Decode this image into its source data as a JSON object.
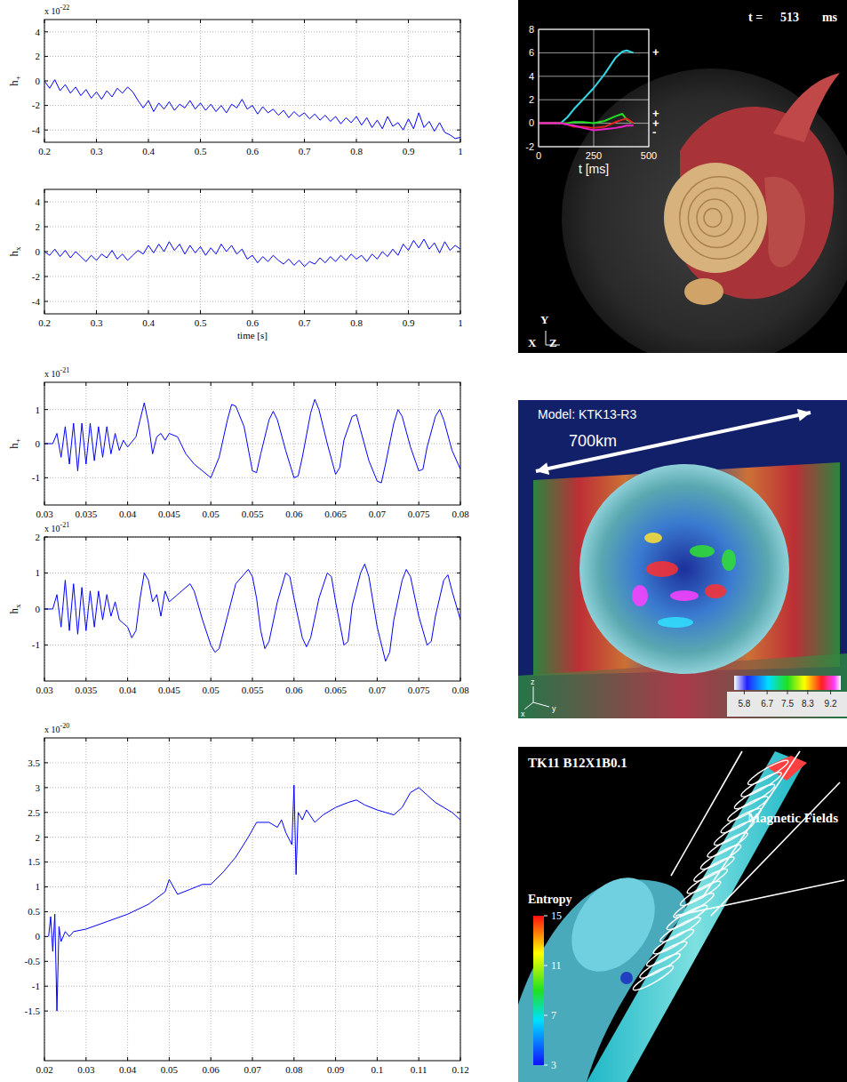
{
  "chart_data": [
    {
      "type": "line",
      "y_label": {
        "base": "h",
        "sub": "+"
      },
      "y_exponent": {
        "base": "x 10",
        "exp": "-22"
      },
      "x": [
        0.2,
        0.21,
        0.22,
        0.23,
        0.24,
        0.25,
        0.26,
        0.27,
        0.28,
        0.29,
        0.3,
        0.31,
        0.32,
        0.33,
        0.34,
        0.35,
        0.36,
        0.37,
        0.38,
        0.39,
        0.4,
        0.41,
        0.42,
        0.43,
        0.44,
        0.45,
        0.46,
        0.47,
        0.48,
        0.49,
        0.5,
        0.51,
        0.52,
        0.53,
        0.54,
        0.55,
        0.56,
        0.57,
        0.58,
        0.59,
        0.6,
        0.61,
        0.62,
        0.63,
        0.64,
        0.65,
        0.66,
        0.67,
        0.68,
        0.69,
        0.7,
        0.71,
        0.72,
        0.73,
        0.74,
        0.75,
        0.76,
        0.77,
        0.78,
        0.79,
        0.8,
        0.81,
        0.82,
        0.83,
        0.84,
        0.85,
        0.86,
        0.87,
        0.88,
        0.89,
        0.9,
        0.91,
        0.92,
        0.93,
        0.94,
        0.95,
        0.96,
        0.97,
        0.98,
        0.99,
        1
      ],
      "series": [
        {
          "color": "#0000ff",
          "values": [
            0,
            -0.6,
            0.1,
            -0.8,
            -0.3,
            -1.0,
            -0.5,
            -1.2,
            -0.7,
            -1.4,
            -0.9,
            -1.5,
            -0.8,
            -1.3,
            -0.6,
            -1.0,
            -0.5,
            -0.9,
            -1.6,
            -2.2,
            -1.6,
            -2.5,
            -1.8,
            -2.3,
            -1.7,
            -2.4,
            -1.9,
            -2.2,
            -1.6,
            -2.3,
            -1.8,
            -2.4,
            -1.9,
            -2.5,
            -2.0,
            -2.6,
            -1.9,
            -2.2,
            -1.5,
            -2.3,
            -2.0,
            -2.7,
            -2.1,
            -2.6,
            -2.3,
            -2.8,
            -2.4,
            -3.0,
            -2.5,
            -2.9,
            -2.6,
            -3.1,
            -2.7,
            -3.2,
            -2.8,
            -3.3,
            -2.9,
            -3.5,
            -3.0,
            -3.4,
            -2.9,
            -3.6,
            -3.0,
            -3.8,
            -3.2,
            -3.9,
            -2.9,
            -3.7,
            -3.4,
            -4.0,
            -3.1,
            -3.9,
            -2.6,
            -3.8,
            -3.3,
            -4.1,
            -3.4,
            -4.2,
            -4.4,
            -4.7,
            -4.6
          ]
        }
      ],
      "xlim": [
        0.2,
        1
      ],
      "xticks": [
        0.2,
        0.3,
        0.4,
        0.5,
        0.6,
        0.7,
        0.8,
        0.9,
        1
      ],
      "ylim": [
        -5,
        5
      ],
      "yticks": [
        -4,
        -2,
        0,
        2,
        4
      ],
      "grid": true
    },
    {
      "type": "line",
      "y_label": {
        "base": "h",
        "sub": "x"
      },
      "x_label": "time [s]",
      "x": [
        0.2,
        0.21,
        0.22,
        0.23,
        0.24,
        0.25,
        0.26,
        0.27,
        0.28,
        0.29,
        0.3,
        0.31,
        0.32,
        0.33,
        0.34,
        0.35,
        0.36,
        0.37,
        0.38,
        0.39,
        0.4,
        0.41,
        0.42,
        0.43,
        0.44,
        0.45,
        0.46,
        0.47,
        0.48,
        0.49,
        0.5,
        0.51,
        0.52,
        0.53,
        0.54,
        0.55,
        0.56,
        0.57,
        0.58,
        0.59,
        0.6,
        0.61,
        0.62,
        0.63,
        0.64,
        0.65,
        0.66,
        0.67,
        0.68,
        0.69,
        0.7,
        0.71,
        0.72,
        0.73,
        0.74,
        0.75,
        0.76,
        0.77,
        0.78,
        0.79,
        0.8,
        0.81,
        0.82,
        0.83,
        0.84,
        0.85,
        0.86,
        0.87,
        0.88,
        0.89,
        0.9,
        0.91,
        0.92,
        0.93,
        0.94,
        0.95,
        0.96,
        0.97,
        0.98,
        0.99,
        1
      ],
      "series": [
        {
          "color": "#0000ff",
          "values": [
            0,
            -0.3,
            0.2,
            -0.4,
            0.1,
            -0.5,
            0.0,
            -0.4,
            -0.8,
            -0.3,
            -0.7,
            -0.2,
            -0.5,
            0.1,
            -0.6,
            -0.2,
            -0.7,
            -0.3,
            0.1,
            -0.2,
            0.5,
            -0.1,
            0.6,
            0.0,
            0.8,
            0.1,
            0.6,
            -0.2,
            0.5,
            -0.1,
            0.4,
            -0.3,
            0.3,
            -0.2,
            0.6,
            0.0,
            0.5,
            -0.2,
            0.2,
            -0.6,
            -0.3,
            -0.9,
            -0.4,
            -0.8,
            -0.3,
            -0.7,
            -1.0,
            -0.6,
            -1.1,
            -0.7,
            -1.2,
            -0.8,
            -1.0,
            -0.5,
            -0.9,
            -0.4,
            -0.8,
            -0.3,
            -0.7,
            -0.2,
            -0.6,
            -0.3,
            -0.8,
            -0.2,
            -0.6,
            0.0,
            -0.4,
            0.2,
            -0.3,
            0.6,
            0.1,
            0.9,
            0.3,
            1.0,
            0.2,
            0.7,
            -0.1,
            0.8,
            0.1,
            0.5,
            0.2
          ]
        }
      ],
      "xlim": [
        0.2,
        1
      ],
      "xticks": [
        0.2,
        0.3,
        0.4,
        0.5,
        0.6,
        0.7,
        0.8,
        0.9,
        1
      ],
      "ylim": [
        -5,
        5
      ],
      "yticks": [
        -4,
        -2,
        0,
        2,
        4
      ],
      "grid": true
    },
    {
      "type": "line",
      "y_label": {
        "base": "h",
        "sub": "+"
      },
      "y_exponent": {
        "base": "x 10",
        "exp": "-21"
      },
      "x": [
        0.03,
        0.031,
        0.0315,
        0.032,
        0.0325,
        0.033,
        0.0335,
        0.034,
        0.0345,
        0.035,
        0.0355,
        0.036,
        0.0365,
        0.037,
        0.0375,
        0.038,
        0.0385,
        0.039,
        0.0395,
        0.04,
        0.041,
        0.0415,
        0.042,
        0.0425,
        0.043,
        0.0435,
        0.044,
        0.0445,
        0.045,
        0.046,
        0.047,
        0.048,
        0.049,
        0.05,
        0.051,
        0.052,
        0.0525,
        0.053,
        0.054,
        0.055,
        0.0555,
        0.056,
        0.057,
        0.0575,
        0.058,
        0.059,
        0.06,
        0.0605,
        0.061,
        0.062,
        0.0625,
        0.063,
        0.064,
        0.065,
        0.0655,
        0.066,
        0.067,
        0.0675,
        0.068,
        0.069,
        0.07,
        0.0705,
        0.071,
        0.072,
        0.0725,
        0.073,
        0.074,
        0.075,
        0.0755,
        0.076,
        0.077,
        0.0775,
        0.078,
        0.079,
        0.08
      ],
      "series": [
        {
          "color": "#0000ff",
          "values": [
            0,
            0,
            0.3,
            -0.4,
            0.5,
            -0.6,
            0.6,
            -0.8,
            0.6,
            -0.6,
            0.6,
            -0.5,
            0.5,
            -0.4,
            0.5,
            -0.3,
            0.3,
            -0.2,
            0.1,
            -0.1,
            0.2,
            0.7,
            1.2,
            0.6,
            -0.3,
            0.2,
            0.3,
            0.1,
            0.3,
            0.2,
            -0.3,
            -0.6,
            -0.8,
            -1,
            -0.4,
            0.7,
            1.15,
            1.1,
            0.5,
            -0.8,
            -0.85,
            -0.3,
            0.7,
            0.95,
            0.7,
            -0.2,
            -1,
            -0.95,
            -0.4,
            0.9,
            1.3,
            1,
            0,
            -0.9,
            -0.7,
            0.1,
            0.8,
            0.85,
            0.4,
            -0.5,
            -1.1,
            -1.15,
            -0.6,
            0.6,
            1,
            0.8,
            -0.1,
            -0.8,
            -0.75,
            -0.1,
            0.8,
            1,
            0.7,
            -0.2,
            -0.75
          ]
        }
      ],
      "xlim": [
        0.03,
        0.08
      ],
      "xticks": [
        0.03,
        0.035,
        0.04,
        0.045,
        0.05,
        0.055,
        0.06,
        0.065,
        0.07,
        0.075,
        0.08
      ],
      "ylim": [
        -1.8,
        1.8
      ],
      "yticks": [
        -1,
        0,
        1
      ],
      "grid": true
    },
    {
      "type": "line",
      "y_label": {
        "base": "h",
        "sub": "x"
      },
      "y_exponent": {
        "base": "x 10",
        "exp": "-21"
      },
      "x": [
        0.03,
        0.031,
        0.0315,
        0.032,
        0.0325,
        0.033,
        0.0335,
        0.034,
        0.0345,
        0.035,
        0.0355,
        0.036,
        0.0365,
        0.037,
        0.0375,
        0.038,
        0.0385,
        0.039,
        0.0395,
        0.04,
        0.0405,
        0.041,
        0.0415,
        0.042,
        0.0425,
        0.043,
        0.0435,
        0.044,
        0.0445,
        0.045,
        0.046,
        0.0475,
        0.048,
        0.049,
        0.05,
        0.0505,
        0.051,
        0.052,
        0.053,
        0.0545,
        0.055,
        0.0555,
        0.056,
        0.0565,
        0.057,
        0.058,
        0.059,
        0.0595,
        0.06,
        0.061,
        0.0615,
        0.062,
        0.063,
        0.064,
        0.0645,
        0.065,
        0.066,
        0.0665,
        0.067,
        0.068,
        0.0685,
        0.069,
        0.07,
        0.071,
        0.0715,
        0.072,
        0.073,
        0.0735,
        0.074,
        0.075,
        0.076,
        0.0765,
        0.077,
        0.078,
        0.0785,
        0.079,
        0.08
      ],
      "series": [
        {
          "color": "#0000ff",
          "values": [
            0,
            0,
            0.4,
            -0.5,
            0.8,
            -0.6,
            0.7,
            -0.7,
            0.6,
            -0.6,
            0.5,
            -0.5,
            0.5,
            -0.3,
            0.4,
            -0.2,
            0.2,
            -0.3,
            -0.4,
            -0.5,
            -0.8,
            -0.6,
            0.3,
            1,
            0.8,
            0.2,
            0.4,
            -0.2,
            0.5,
            0.2,
            0.4,
            0.7,
            0.5,
            -0.3,
            -1,
            -1.2,
            -1.1,
            -0.2,
            0.7,
            1.1,
            0.9,
            0.3,
            -0.6,
            -1.1,
            -0.9,
            0.2,
            1,
            0.9,
            0.3,
            -0.8,
            -1.05,
            -0.8,
            0.3,
            1,
            0.9,
            0.2,
            -1,
            -0.9,
            0.1,
            1,
            1.25,
            0.9,
            -0.5,
            -1.45,
            -1.2,
            -0.3,
            0.8,
            1.1,
            0.9,
            -0.2,
            -1,
            -0.9,
            -0.2,
            0.8,
            0.95,
            0.5,
            -0.3
          ]
        }
      ],
      "xlim": [
        0.03,
        0.08
      ],
      "xticks": [
        0.03,
        0.035,
        0.04,
        0.045,
        0.05,
        0.055,
        0.06,
        0.065,
        0.07,
        0.075,
        0.08
      ],
      "ylim": [
        -2,
        2
      ],
      "yticks": [
        -1,
        0,
        1,
        2
      ],
      "grid": true
    },
    {
      "type": "line",
      "y_exponent": {
        "base": "x 10",
        "exp": "-20"
      },
      "x": [
        0.021,
        0.0215,
        0.022,
        0.0225,
        0.023,
        0.0235,
        0.024,
        0.025,
        0.026,
        0.027,
        0.03,
        0.035,
        0.04,
        0.045,
        0.049,
        0.05,
        0.052,
        0.055,
        0.058,
        0.06,
        0.063,
        0.066,
        0.069,
        0.071,
        0.074,
        0.076,
        0.077,
        0.078,
        0.0795,
        0.08,
        0.0805,
        0.081,
        0.082,
        0.083,
        0.085,
        0.087,
        0.09,
        0.093,
        0.095,
        0.097,
        0.1,
        0.102,
        0.104,
        0.106,
        0.108,
        0.11,
        0.112,
        0.114,
        0.116,
        0.118,
        0.12
      ],
      "series": [
        {
          "color": "#0000ff",
          "values": [
            0,
            0.4,
            -0.3,
            0.45,
            -1.5,
            0.2,
            -0.1,
            0.1,
            0,
            0.1,
            0.15,
            0.3,
            0.45,
            0.65,
            0.9,
            1.15,
            0.85,
            0.95,
            1.05,
            1.05,
            1.3,
            1.6,
            2,
            2.3,
            2.3,
            2.2,
            2.35,
            2.1,
            1.85,
            3.05,
            1.25,
            2.5,
            2.35,
            2.55,
            2.3,
            2.45,
            2.6,
            2.7,
            2.75,
            2.65,
            2.55,
            2.5,
            2.45,
            2.6,
            2.9,
            3,
            2.85,
            2.7,
            2.6,
            2.5,
            2.35
          ]
        }
      ],
      "xlim": [
        0.02,
        0.12
      ],
      "xticks": [
        0.02,
        0.03,
        0.04,
        0.05,
        0.06,
        0.07,
        0.08,
        0.09,
        0.1,
        0.11,
        0.12
      ],
      "ylim": [
        -2.5,
        4
      ],
      "yticks": [
        -1.5,
        -1,
        -0.5,
        0,
        0.5,
        1,
        1.5,
        2,
        2.5,
        3,
        3.5
      ],
      "grid": true
    },
    {
      "type": "line",
      "x_label": "t [ms]",
      "x": [
        0,
        50,
        100,
        130,
        160,
        200,
        250,
        300,
        350,
        380,
        400,
        430
      ],
      "series": [
        {
          "color": "#33d8e6",
          "values": [
            0,
            0,
            0,
            0.5,
            1.2,
            2.0,
            3.0,
            4.2,
            5.6,
            6.1,
            6.2,
            6.0
          ]
        },
        {
          "color": "#22dd22",
          "values": [
            0,
            0,
            0,
            0,
            0.1,
            0.1,
            0,
            0.2,
            0.6,
            0.8,
            0.3,
            0
          ]
        },
        {
          "color": "#e02222",
          "values": [
            0,
            0,
            0,
            -0.1,
            -0.3,
            -0.3,
            -0.4,
            -0.3,
            0.1,
            0.3,
            0.4,
            0
          ]
        },
        {
          "color": "#ee22cc",
          "values": [
            0,
            0,
            0,
            -0.1,
            -0.2,
            -0.4,
            -0.6,
            -0.5,
            -0.4,
            -0.3,
            -0.2,
            -0.2
          ]
        }
      ],
      "annotations": [
        {
          "text": "+",
          "y": 6
        },
        {
          "text": "+",
          "y": 0.8
        },
        {
          "text": "+",
          "y": 0
        },
        {
          "text": "-",
          "y": -0.8
        }
      ],
      "xlim": [
        0,
        500
      ],
      "xticks": [
        0,
        250,
        500
      ],
      "ylim": [
        -2,
        8
      ],
      "yticks": [
        -2,
        0,
        2,
        4,
        6,
        8
      ],
      "grid": true
    }
  ],
  "images": [
    {
      "time": {
        "prefix": "t =",
        "value": "513",
        "unit": "ms"
      },
      "axes": [
        "Y",
        "X",
        "Z"
      ]
    },
    {
      "title": "Model: KTK13-R3",
      "scale_label": "700km",
      "colorbar": {
        "range": [
          5.4,
          9.6
        ],
        "ticks": [
          5.8,
          6.7,
          7.5,
          8.3,
          9.2
        ]
      },
      "axes": [
        "z",
        "x",
        "y"
      ]
    },
    {
      "title": "TK11 B12X1B0.1",
      "colorbar_title": "Entropy",
      "colorbar": {
        "range": [
          3,
          15
        ],
        "ticks": [
          15,
          11,
          7,
          3
        ]
      },
      "annotation": "Magnetic Fields"
    }
  ]
}
